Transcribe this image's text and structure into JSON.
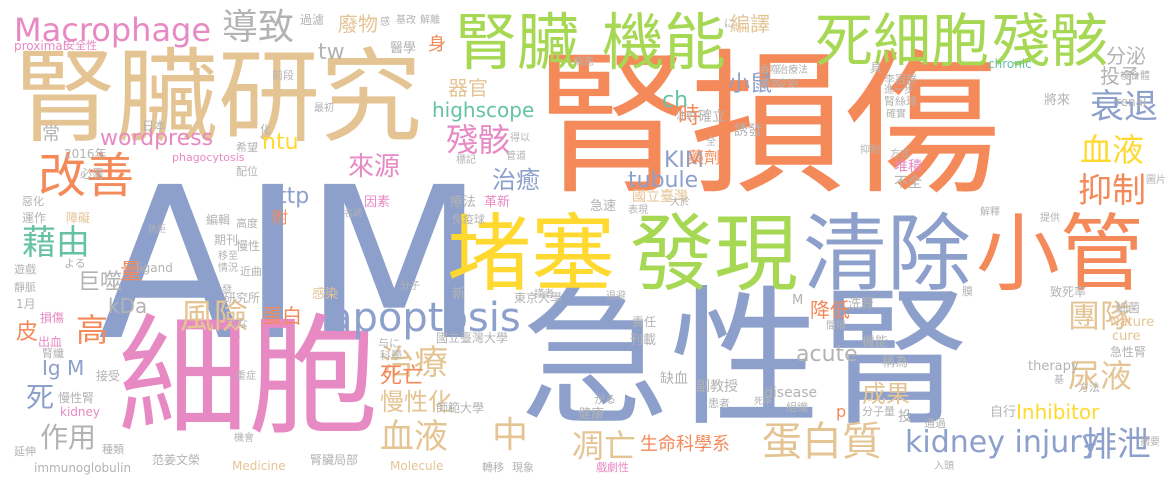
{
  "colors": {
    "background": "#ffffff",
    "orange": "#f48a5a",
    "blue": "#8da0cb",
    "pink": "#e78ac3",
    "green": "#a6d854",
    "yellow": "#ffd92f",
    "tan": "#e5c494",
    "gray": "#b3b3b3",
    "teal": "#66c2a5"
  },
  "words": {
    "w1": "AIM",
    "w2": "腎損傷",
    "w3": "急性腎",
    "w4": "細胞",
    "w5": "腎臟研究",
    "w6": "堵塞",
    "w7": "發現",
    "w8": "清除",
    "w9": "小管",
    "w10": "腎臟",
    "w11": "機能",
    "w12": "死細胞",
    "w13": "殘骸",
    "w14": "apoptosis",
    "w15": "Macrophage",
    "w16": "導致",
    "w17": "改善",
    "w18": "藉由",
    "w19": "風險",
    "w20": "治療",
    "w21": "血液",
    "w22": "中",
    "w23": "凋亡",
    "w24": "蛋白質",
    "w25": "kidney injury",
    "w26": "排泄",
    "w27": "衰退",
    "w28": "抑制",
    "w29": "血液",
    "w30": "團隊",
    "w31": "尿液",
    "w32": "成果",
    "w33": "慢性化",
    "w34": "死亡",
    "w35": "作用",
    "w36": "高",
    "w37": "蛋白",
    "w38": "殘骸",
    "w39": "治癒",
    "w40": "來源",
    "w41": "器官",
    "w42": "highscope",
    "w43": "ntu",
    "w44": "http",
    "w45": "wordpress",
    "w46": "tw",
    "w47": "KIM",
    "w48": "tubule",
    "w49": "國立臺灣",
    "w50": "時",
    "w51": "ch",
    "w52": "小鼠",
    "w53": "分泌",
    "w54": "投予",
    "w55": "編譯",
    "w56": "廢物",
    "w57": "身",
    "w58": "醫學",
    "w59": "巨噬",
    "w60": "量",
    "w61": "Ig M",
    "w62": "死",
    "w63": "皮",
    "w64": "kDa",
    "w65": "降低",
    "w66": "acute",
    "w67": "Inhibitor",
    "w68": "生命科學系",
    "w69": "國立臺灣大學",
    "w70": "東京大學",
    "w71": "師範大學",
    "w72": "范姜文榮",
    "w73": "腎臟局部",
    "w74": "Medicine",
    "w75": "Molecule",
    "w76": "immunoglobulin",
    "w77": "disease",
    "w78": "therapy",
    "w79": "Nature",
    "w80": "cure",
    "w81": "急性腎",
    "w82": "細菌",
    "w83": "致死率",
    "w84": "renal",
    "w85": "chronic",
    "w86": "proximal",
    "w87": "phagocytosis",
    "w88": "ligand",
    "w89": "附",
    "w90": "感染",
    "w91": "研究所",
    "w92": "新",
    "w93": "革新",
    "w94": "療法",
    "w95": "因素",
    "w96": "免疫球",
    "w97": "藥劑",
    "w98": "急速",
    "w99": "堆積",
    "w100": "不全",
    "w101": "李冠群",
    "w102": "確立",
    "w103": "誘發",
    "w104": "腎絲球",
    "w105": "複合體",
    "w106": "將來",
    "w107": "缺血",
    "w108": "副教授",
    "w109": "患者",
    "w110": "組織",
    "w111": "健康",
    "w112": "刊載",
    "w113": "責任",
    "w114": "機能",
    "w115": "稱為",
    "w116": "洗腎",
    "w117": "自行",
    "w118": "方法",
    "w119": "分子量",
    "w120": "通過",
    "w121": "損傷",
    "w122": "出血",
    "w123": "腎纖",
    "w124": "慢性腎",
    "w125": "kidney",
    "w126": "接受",
    "w127": "種類",
    "w128": "延伸",
    "w129": "1月",
    "w130": "靜脈",
    "w131": "遊戲",
    "w132": "運作",
    "w133": "障礙",
    "w134": "惡化",
    "w135": "必需",
    "w136": "常",
    "w137": "2016年",
    "w138": "日本",
    "w139": "編輯",
    "w140": "期刊",
    "w141": "高度",
    "w142": "慢性",
    "w143": "配位",
    "w144": "希望",
    "w145": "過濾",
    "w146": "安全性",
    "w147": "基改",
    "w148": "解離",
    "w149": "前段",
    "w150": "最初",
    "w151": "注射",
    "w152": "表現",
    "w153": "抑制",
    "w154": "分子",
    "w155": "謹者",
    "w156": "現象",
    "w157": "轉移",
    "w158": "戲劇性",
    "w159": "摘要",
    "w160": "入頭",
    "w161": "提供",
    "w162": "解釋",
    "w163": "圖片",
    "w164": "大於",
    "w165": "原本",
    "w166": "吞噬",
    "w167": "治療法",
    "w168": "病患",
    "w169": "進一步",
    "w170": "確實",
    "w171": "具",
    "w172": "膜",
    "w173": "管道",
    "w174": "標記",
    "w175": "得以",
    "w176": "全",
    "w177": "に",
    "w178": "がる",
    "w179": "つな",
    "w180": "よる",
    "w181": "与に",
    "w182": "科學",
    "w183": "M",
    "w184": "p",
    "w185": "投",
    "w186": "感",
    "w187": "化",
    "w188": "名詞",
    "w189": "抗拒",
    "w190": "情況",
    "w191": "近曲",
    "w192": "移至",
    "w193": "重症",
    "w194": "機會",
    "w195": "間隔",
    "w196": "死率",
    "w197": "方式",
    "w198": "定期",
    "w199": "基",
    "w200": "退避",
    "w201": "發"
  }
}
